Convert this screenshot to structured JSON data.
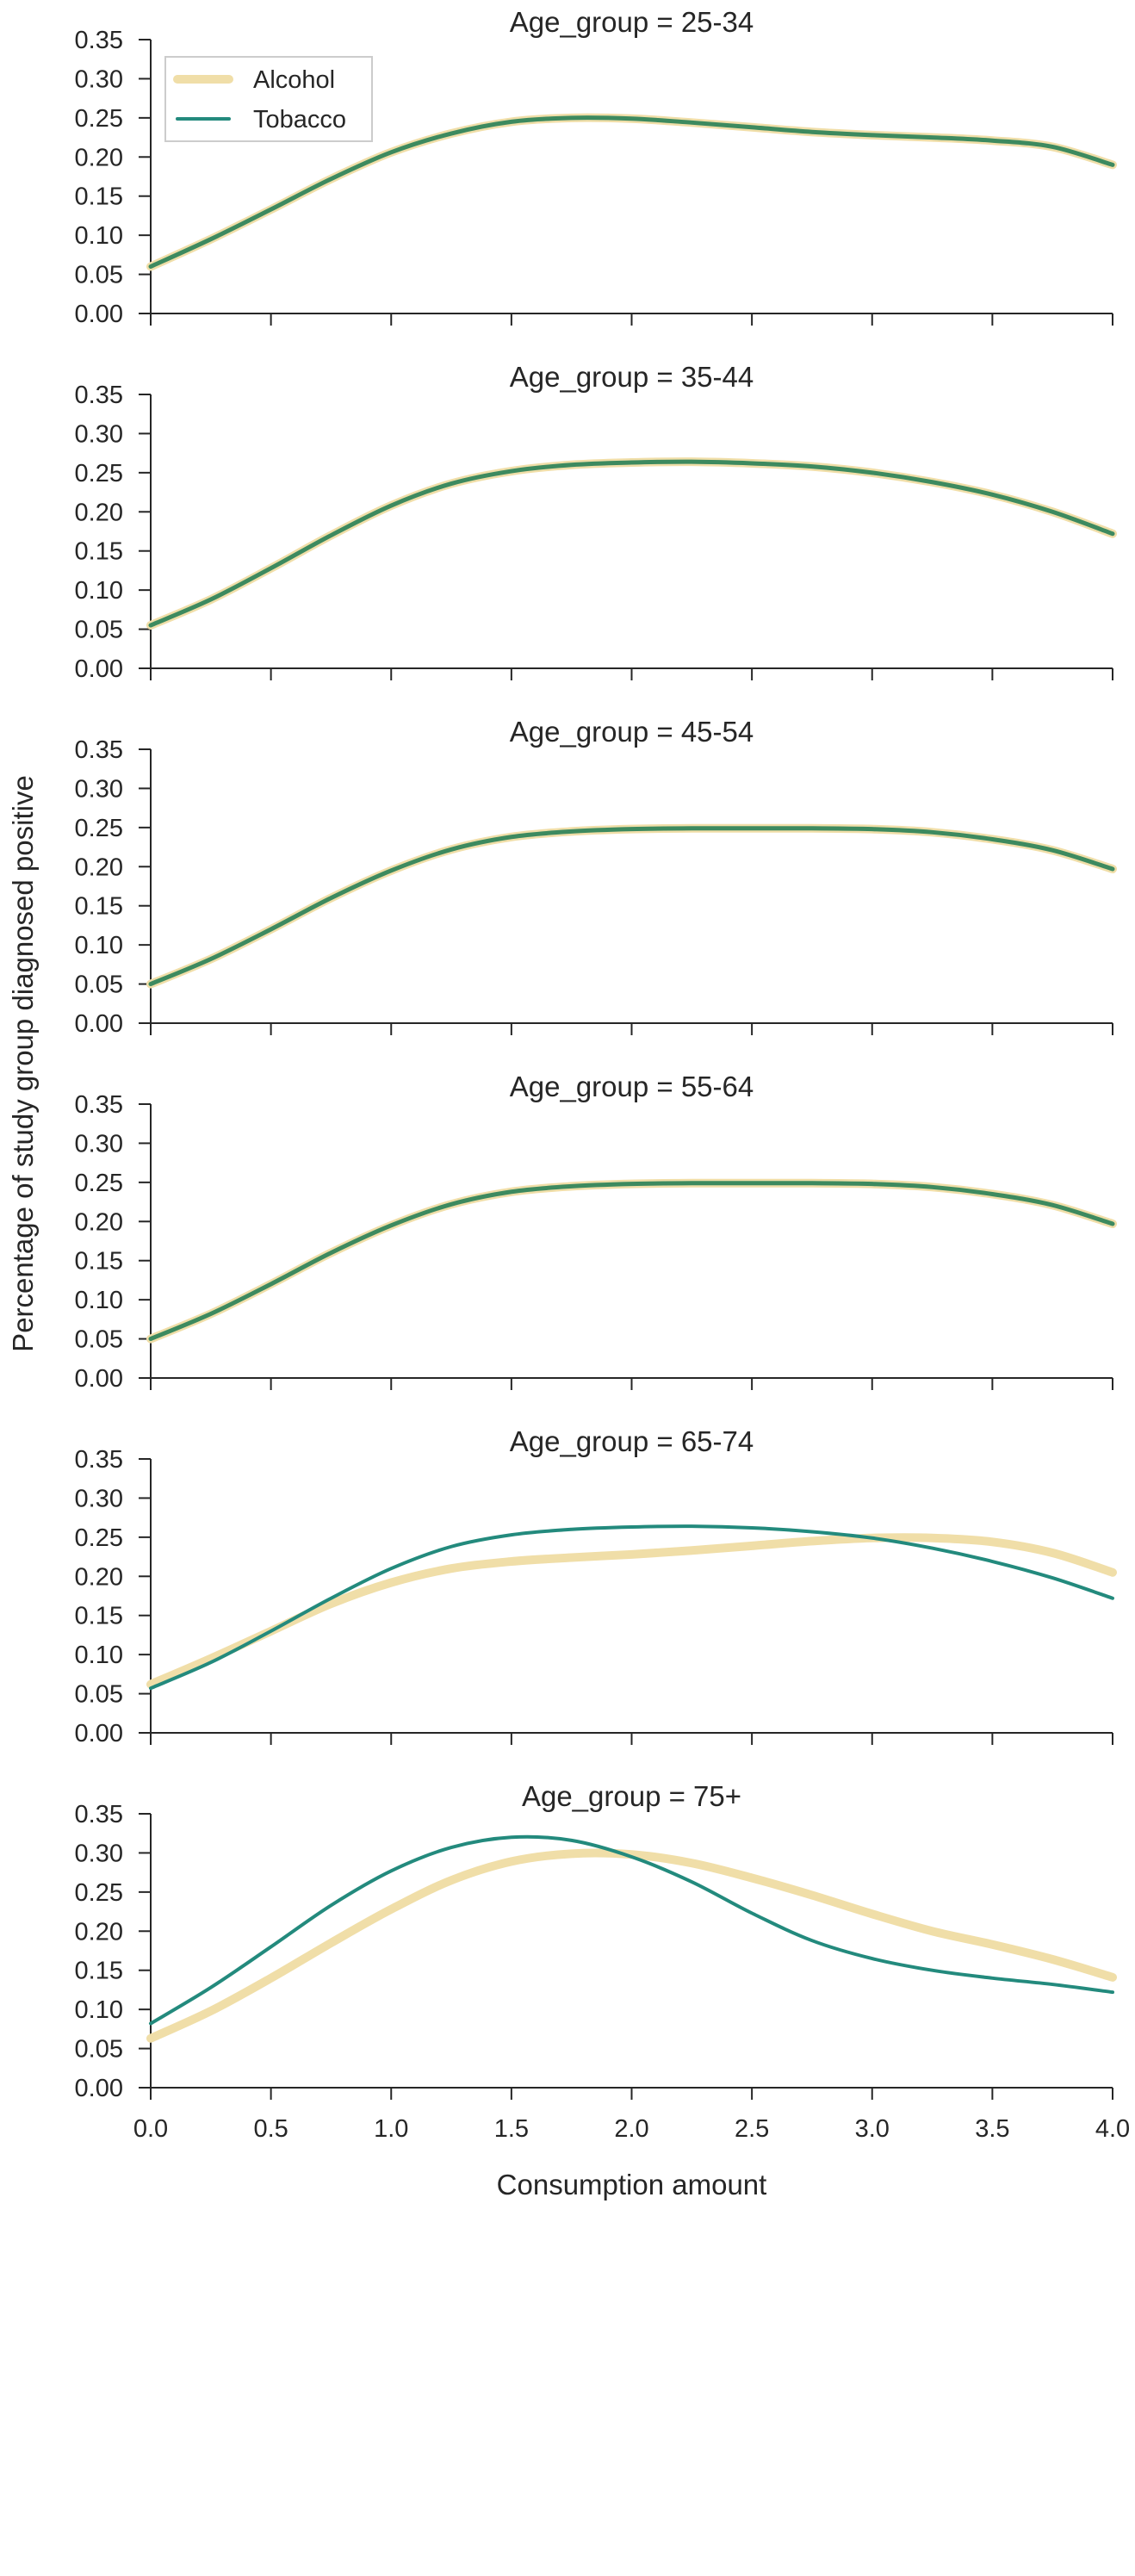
{
  "chart_data": {
    "type": "line",
    "layout": "faceted-rows",
    "xlabel": "Consumption amount",
    "ylabel": "Percentage of study group diagnosed positive",
    "xlim": [
      0.0,
      4.0
    ],
    "ylim": [
      0.0,
      0.35
    ],
    "x_ticks": [
      "0.0",
      "0.5",
      "1.0",
      "1.5",
      "2.0",
      "2.5",
      "3.0",
      "3.5",
      "4.0"
    ],
    "y_ticks": [
      "0.00",
      "0.05",
      "0.10",
      "0.15",
      "0.20",
      "0.25",
      "0.30",
      "0.35"
    ],
    "grid": false,
    "legend": {
      "placement": "top-left of first panel",
      "entries": [
        {
          "name": "Alcohol",
          "color": "#f0dea8"
        },
        {
          "name": "Tobacco",
          "color": "#238a7d"
        }
      ]
    },
    "panels": [
      {
        "title": "Age_group = 25-34",
        "x": [
          0,
          0.25,
          0.5,
          0.75,
          1.0,
          1.25,
          1.5,
          1.75,
          2.0,
          2.25,
          2.5,
          2.75,
          3.0,
          3.25,
          3.5,
          3.75,
          4.0
        ],
        "series": [
          {
            "name": "Alcohol",
            "values": [
              0.06,
              0.095,
              0.133,
              0.172,
              0.206,
              0.23,
              0.245,
              0.25,
              0.249,
              0.244,
              0.238,
              0.232,
              0.228,
              0.225,
              0.221,
              0.213,
              0.19
            ]
          },
          {
            "name": "Tobacco",
            "values": [
              0.06,
              0.095,
              0.133,
              0.172,
              0.206,
              0.23,
              0.245,
              0.25,
              0.249,
              0.244,
              0.238,
              0.232,
              0.228,
              0.225,
              0.221,
              0.213,
              0.19
            ]
          }
        ]
      },
      {
        "title": "Age_group = 35-44",
        "x": [
          0,
          0.25,
          0.5,
          0.75,
          1.0,
          1.25,
          1.5,
          1.75,
          2.0,
          2.25,
          2.5,
          2.75,
          3.0,
          3.25,
          3.5,
          3.75,
          4.0
        ],
        "series": [
          {
            "name": "Alcohol",
            "values": [
              0.055,
              0.088,
              0.128,
              0.17,
              0.208,
              0.236,
              0.252,
              0.26,
              0.263,
              0.264,
              0.262,
              0.258,
              0.25,
              0.238,
              0.222,
              0.2,
              0.172
            ]
          },
          {
            "name": "Tobacco",
            "values": [
              0.055,
              0.088,
              0.128,
              0.17,
              0.208,
              0.236,
              0.252,
              0.26,
              0.263,
              0.264,
              0.262,
              0.258,
              0.25,
              0.238,
              0.222,
              0.2,
              0.172
            ]
          }
        ]
      },
      {
        "title": "Age_group = 45-54",
        "x": [
          0,
          0.25,
          0.5,
          0.75,
          1.0,
          1.25,
          1.5,
          1.75,
          2.0,
          2.25,
          2.5,
          2.75,
          3.0,
          3.25,
          3.5,
          3.75,
          4.0
        ],
        "series": [
          {
            "name": "Alcohol",
            "values": [
              0.05,
              0.082,
              0.12,
              0.16,
              0.195,
              0.222,
              0.238,
              0.245,
              0.248,
              0.249,
              0.249,
              0.249,
              0.248,
              0.244,
              0.235,
              0.221,
              0.197
            ]
          },
          {
            "name": "Tobacco",
            "values": [
              0.05,
              0.082,
              0.12,
              0.16,
              0.195,
              0.222,
              0.238,
              0.245,
              0.248,
              0.249,
              0.249,
              0.249,
              0.248,
              0.244,
              0.235,
              0.221,
              0.197
            ]
          }
        ]
      },
      {
        "title": "Age_group = 55-64",
        "x": [
          0,
          0.25,
          0.5,
          0.75,
          1.0,
          1.25,
          1.5,
          1.75,
          2.0,
          2.25,
          2.5,
          2.75,
          3.0,
          3.25,
          3.5,
          3.75,
          4.0
        ],
        "series": [
          {
            "name": "Alcohol",
            "values": [
              0.05,
              0.082,
              0.12,
              0.16,
              0.195,
              0.222,
              0.238,
              0.245,
              0.248,
              0.249,
              0.249,
              0.249,
              0.248,
              0.244,
              0.235,
              0.221,
              0.197
            ]
          },
          {
            "name": "Tobacco",
            "values": [
              0.05,
              0.082,
              0.12,
              0.16,
              0.195,
              0.222,
              0.238,
              0.245,
              0.248,
              0.249,
              0.249,
              0.249,
              0.248,
              0.244,
              0.235,
              0.221,
              0.197
            ]
          }
        ]
      },
      {
        "title": "Age_group = 65-74",
        "x": [
          0,
          0.25,
          0.5,
          0.75,
          1.0,
          1.25,
          1.5,
          1.75,
          2.0,
          2.25,
          2.5,
          2.75,
          3.0,
          3.25,
          3.5,
          3.75,
          4.0
        ],
        "series": [
          {
            "name": "Alcohol",
            "values": [
              0.062,
              0.095,
              0.13,
              0.165,
              0.192,
              0.21,
              0.219,
              0.224,
              0.228,
              0.233,
              0.239,
              0.245,
              0.249,
              0.249,
              0.244,
              0.23,
              0.205
            ]
          },
          {
            "name": "Tobacco",
            "values": [
              0.057,
              0.09,
              0.13,
              0.172,
              0.21,
              0.238,
              0.253,
              0.26,
              0.263,
              0.264,
              0.262,
              0.257,
              0.249,
              0.236,
              0.219,
              0.198,
              0.172
            ]
          }
        ]
      },
      {
        "title": "Age_group = 75+",
        "x": [
          0,
          0.25,
          0.5,
          0.75,
          1.0,
          1.25,
          1.5,
          1.75,
          2.0,
          2.25,
          2.5,
          2.75,
          3.0,
          3.25,
          3.5,
          3.75,
          4.0
        ],
        "series": [
          {
            "name": "Alcohol",
            "values": [
              0.063,
              0.098,
              0.14,
              0.185,
              0.228,
              0.265,
              0.289,
              0.299,
              0.298,
              0.287,
              0.268,
              0.246,
              0.222,
              0.2,
              0.183,
              0.164,
              0.141
            ]
          },
          {
            "name": "Tobacco",
            "values": [
              0.082,
              0.128,
              0.18,
              0.233,
              0.277,
              0.307,
              0.32,
              0.316,
              0.295,
              0.263,
              0.223,
              0.188,
              0.165,
              0.15,
              0.14,
              0.132,
              0.122
            ]
          }
        ]
      }
    ]
  }
}
